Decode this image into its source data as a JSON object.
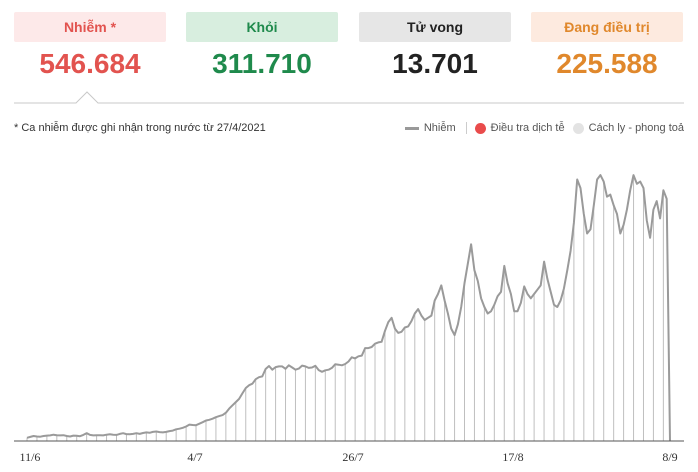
{
  "stats": [
    {
      "label": "Nhiễm *",
      "value": "546.684"
    },
    {
      "label": "Khỏi",
      "value": "311.710"
    },
    {
      "label": "Tử vong",
      "value": "13.701"
    },
    {
      "label": "Đang điều trị",
      "value": "225.588"
    }
  ],
  "note": "* Ca nhiễm được ghi nhận trong nước từ 27/4/2021",
  "legend": {
    "total": "Nhiễm",
    "investigation": "Điều tra dịch tễ",
    "quarantine": "Cách ly - phong toả"
  },
  "colors": {
    "total": "#999999",
    "investigation": "#e94b4b",
    "quarantine": "#e3e3e3",
    "accent_red": "#e2534f",
    "green": "#1f8a4c",
    "orange": "#e0882c"
  },
  "chart_data": {
    "type": "bar",
    "x_ticks": [
      "11/6",
      "4/7",
      "26/7",
      "17/8",
      "8/9"
    ],
    "series": [
      {
        "name": "Nhiễm",
        "values": [
          150,
          190,
          230,
          210,
          200,
          230,
          250,
          260,
          290,
          270,
          260,
          270,
          230,
          210,
          250,
          240,
          220,
          280,
          360,
          280,
          260,
          270,
          270,
          260,
          290,
          310,
          290,
          280,
          330,
          360,
          320,
          310,
          330,
          360,
          330,
          370,
          400,
          380,
          420,
          440,
          410,
          400,
          420,
          460,
          480,
          540,
          570,
          610,
          670,
          760,
          740,
          730,
          800,
          870,
          950,
          980,
          1030,
          1100,
          1150,
          1200,
          1310,
          1500,
          1650,
          1800,
          1950,
          2200,
          2450,
          2580,
          2650,
          2860,
          2950,
          2990,
          3330,
          3470,
          3300,
          3420,
          3450,
          3450,
          3340,
          3500,
          3400,
          3300,
          3350,
          3490,
          3450,
          3380,
          3400,
          3480,
          3280,
          3200,
          3270,
          3300,
          3380,
          3550,
          3530,
          3500,
          3560,
          3680,
          3870,
          3820,
          3920,
          3950,
          4300,
          4300,
          4350,
          4500,
          4560,
          4590,
          5100,
          5500,
          5700,
          5200,
          5000,
          5050,
          5250,
          5300,
          5550,
          5900,
          6100,
          5800,
          5600,
          5700,
          5800,
          6500,
          6800,
          7200,
          6500,
          5900,
          5200,
          4900,
          5400,
          6200,
          7300,
          8200,
          9100,
          7900,
          7400,
          6600,
          6200,
          5900,
          6000,
          6300,
          6700,
          6900,
          8100,
          7300,
          6800,
          6000,
          6000,
          6400,
          7150,
          6800,
          6600,
          6800,
          7000,
          7200,
          8300,
          7500,
          6900,
          6300,
          6200,
          6500,
          7050,
          7900,
          8800,
          10100,
          12100,
          11700,
          10500,
          9600,
          9800,
          10900,
          12100,
          12300,
          12000,
          11300,
          11400,
          10900,
          10500,
          9600,
          10000,
          10700,
          11600,
          12300,
          11900,
          12000,
          11700,
          10200,
          9400,
          10700,
          11100,
          10300,
          11600,
          11200,
          0
        ]
      },
      {
        "name": "Điều tra dịch tễ",
        "values": [
          0,
          0,
          0,
          0,
          0,
          0,
          0,
          0,
          0,
          0,
          0,
          0,
          0,
          0,
          0,
          0,
          0,
          0,
          0,
          0,
          0,
          0,
          0,
          0,
          0,
          0,
          0,
          0,
          0,
          0,
          0,
          0,
          0,
          0,
          0,
          0,
          0,
          0,
          0,
          0,
          0,
          0,
          0,
          0,
          0,
          0,
          0,
          0,
          0,
          0,
          0,
          0,
          0,
          0,
          0,
          0,
          0,
          0,
          0,
          0,
          0,
          0,
          0,
          0,
          0,
          0,
          0,
          0,
          0,
          0,
          0,
          0,
          0,
          0,
          0,
          0,
          0,
          0,
          0,
          0,
          0,
          0,
          0,
          0,
          0,
          0,
          0,
          0,
          0,
          0,
          0,
          0,
          0,
          0,
          0,
          0,
          0,
          0,
          0,
          0,
          0,
          0,
          0,
          0,
          0,
          0,
          0,
          0,
          0,
          0,
          0,
          0,
          0,
          0,
          0,
          0,
          0,
          0,
          0,
          0,
          0,
          0,
          0,
          0,
          0,
          0,
          0,
          0,
          0,
          0,
          0,
          0,
          0,
          0,
          0,
          0,
          0,
          0,
          0,
          0,
          0,
          0,
          0,
          0,
          0,
          0,
          0,
          0,
          0,
          0,
          0,
          0,
          0,
          0,
          0,
          0,
          0,
          0,
          0,
          0,
          0,
          0,
          0,
          0,
          0,
          0,
          0,
          0,
          0,
          0,
          0,
          0,
          0,
          0,
          0,
          0,
          0,
          0,
          0,
          0,
          0,
          0,
          0,
          0,
          0,
          0,
          0,
          0,
          0,
          0,
          0,
          0,
          0,
          0,
          0,
          0,
          0,
          0,
          0,
          0,
          0,
          0,
          0,
          0,
          0,
          0,
          0,
          0,
          0,
          0,
          0,
          0,
          0,
          0,
          0
        ]
      }
    ],
    "highlights": {
      "total": [
        0,
        0,
        0,
        0,
        0,
        0,
        0,
        0,
        0,
        0,
        0,
        0,
        0,
        0,
        0,
        0,
        0,
        0,
        0,
        0,
        0,
        0,
        0,
        0,
        0,
        0,
        0,
        0,
        0,
        0,
        0,
        0,
        0,
        0,
        0,
        0,
        0,
        0,
        0,
        0,
        0,
        0,
        0,
        0,
        0,
        0,
        0,
        0,
        0,
        0,
        0,
        0,
        0,
        0,
        0,
        0,
        0,
        0,
        0,
        0,
        0,
        0,
        0,
        0,
        0,
        0,
        0,
        0,
        0,
        0,
        0,
        0,
        0,
        0,
        0,
        0,
        0,
        0,
        0,
        0,
        0,
        0,
        0,
        0,
        0,
        0,
        0,
        0,
        0,
        0,
        0,
        0,
        0,
        0,
        0,
        0,
        0,
        0,
        0,
        0,
        0,
        0,
        0,
        0,
        0,
        0,
        0,
        0,
        0,
        0,
        0,
        0,
        0,
        0,
        0,
        0,
        0,
        0,
        0,
        0,
        0,
        0,
        0,
        0,
        0,
        0,
        0,
        0,
        0,
        0,
        0,
        0,
        0,
        0,
        0,
        0,
        0,
        0,
        0,
        0,
        0,
        0,
        0,
        0,
        0,
        0,
        0,
        0,
        0,
        0,
        0,
        0,
        0,
        0,
        0,
        0,
        0,
        0,
        0,
        0,
        0,
        0,
        0,
        0,
        0,
        0,
        0,
        0,
        0,
        0,
        0,
        0,
        0,
        0,
        0,
        0,
        0,
        0,
        0,
        0,
        0,
        0,
        0,
        0,
        0,
        0,
        0,
        0,
        0,
        0,
        0,
        0,
        0,
        0,
        0,
        0,
        0,
        0,
        0,
        0,
        0,
        0,
        0,
        0,
        0,
        0,
        0,
        0,
        0,
        0,
        0,
        0,
        0,
        0,
        0,
        0
      ]
    },
    "ylim": [
      0,
      13000
    ]
  }
}
